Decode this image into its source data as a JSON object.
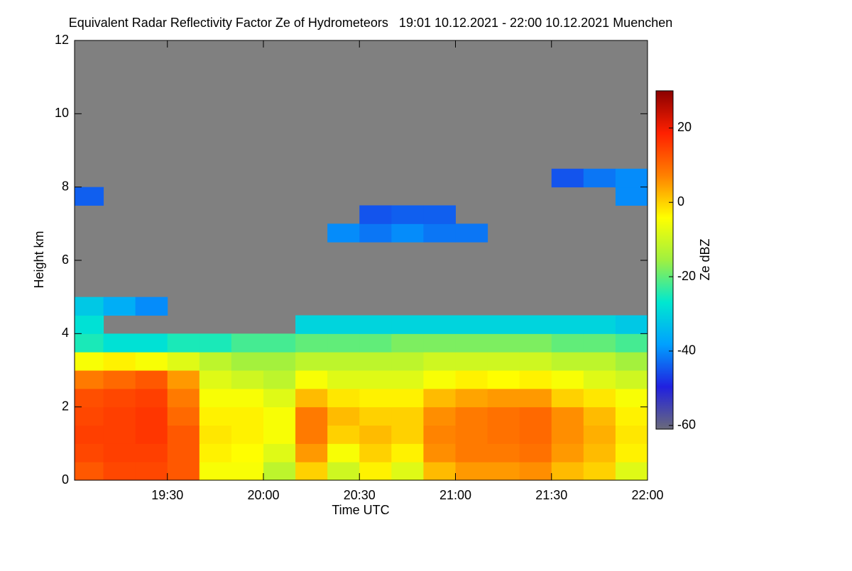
{
  "chart_data": {
    "type": "heatmap",
    "title": "Equivalent Radar Reflectivity Factor Ze of Hydrometeors   19:01 10.12.2021 - 22:00 10.12.2021 Muenchen",
    "x_label": "Time UTC",
    "y_label": "Height km",
    "background": "#808080",
    "xlim": [
      1141,
      1320
    ],
    "xticks": [
      {
        "value": 1170,
        "label": "19:30"
      },
      {
        "value": 1200,
        "label": "20:00"
      },
      {
        "value": 1230,
        "label": "20:30"
      },
      {
        "value": 1260,
        "label": "21:00"
      },
      {
        "value": 1290,
        "label": "21:30"
      },
      {
        "value": 1320,
        "label": "22:00"
      }
    ],
    "ylim": [
      0,
      12
    ],
    "yticks": [
      0,
      2,
      4,
      6,
      8,
      10,
      12
    ],
    "x_bins": [
      1141,
      1150,
      1160,
      1170,
      1180,
      1190,
      1200,
      1210,
      1220,
      1230,
      1240,
      1250,
      1260,
      1270,
      1280,
      1290,
      1300,
      1310,
      1320
    ],
    "y_bins": [
      0,
      0.5,
      1,
      1.5,
      2,
      2.5,
      3,
      3.5,
      4,
      4.5,
      5,
      5.5,
      6,
      6.5,
      7,
      7.5,
      8,
      8.5,
      9
    ],
    "values": [
      [
        12,
        14,
        14,
        12,
        -5,
        -5,
        -12,
        0,
        -10,
        -3,
        -8,
        2,
        5,
        5,
        6,
        2,
        0,
        -8
      ],
      [
        14,
        15,
        15,
        12,
        -3,
        -4,
        -8,
        5,
        -5,
        0,
        -3,
        6,
        8,
        8,
        9,
        5,
        2,
        -3
      ],
      [
        15,
        15,
        16,
        12,
        -2,
        -3,
        -5,
        8,
        0,
        2,
        0,
        7,
        8,
        9,
        10,
        6,
        3,
        -2
      ],
      [
        14,
        15,
        16,
        10,
        -3,
        -3,
        -5,
        8,
        2,
        0,
        0,
        6,
        8,
        9,
        10,
        6,
        2,
        -3
      ],
      [
        13,
        14,
        15,
        8,
        -5,
        -5,
        -8,
        2,
        -2,
        -3,
        -3,
        2,
        4,
        5,
        5,
        0,
        -2,
        -5
      ],
      [
        8,
        10,
        12,
        5,
        -8,
        -10,
        -12,
        -5,
        -8,
        -8,
        -8,
        -5,
        -3,
        -4,
        -3,
        -5,
        -8,
        -10
      ],
      [
        -5,
        -3,
        -5,
        -8,
        -12,
        -15,
        -15,
        -12,
        -12,
        -12,
        -12,
        -10,
        -10,
        -10,
        -10,
        -12,
        -12,
        -15
      ],
      [
        -25,
        -28,
        -28,
        -25,
        -25,
        -22,
        -22,
        -20,
        -20,
        -20,
        -18,
        -18,
        -18,
        -18,
        -18,
        -20,
        -20,
        -22
      ],
      [
        -28,
        null,
        null,
        null,
        null,
        null,
        null,
        -30,
        -30,
        -30,
        -30,
        -30,
        -30,
        -30,
        -30,
        -30,
        -30,
        -32
      ],
      [
        -32,
        -36,
        -40,
        null,
        null,
        null,
        null,
        null,
        null,
        null,
        null,
        null,
        null,
        null,
        null,
        null,
        null,
        null
      ],
      [
        null,
        null,
        null,
        null,
        null,
        null,
        null,
        null,
        null,
        null,
        null,
        null,
        null,
        null,
        null,
        null,
        null,
        null
      ],
      [
        null,
        null,
        null,
        null,
        null,
        null,
        null,
        null,
        null,
        null,
        null,
        null,
        null,
        null,
        null,
        null,
        null,
        null
      ],
      [
        null,
        null,
        null,
        null,
        null,
        null,
        null,
        null,
        null,
        null,
        null,
        null,
        null,
        null,
        null,
        null,
        null,
        null
      ],
      [
        null,
        null,
        null,
        null,
        null,
        null,
        null,
        null,
        -40,
        -42,
        -40,
        -42,
        -42,
        null,
        null,
        null,
        null,
        null
      ],
      [
        null,
        null,
        null,
        null,
        null,
        null,
        null,
        null,
        null,
        -45,
        -44,
        -44,
        null,
        null,
        null,
        null,
        null,
        null
      ],
      [
        -44,
        null,
        null,
        null,
        null,
        null,
        null,
        null,
        null,
        null,
        null,
        null,
        null,
        null,
        null,
        null,
        null,
        -40
      ],
      [
        null,
        null,
        null,
        null,
        null,
        null,
        null,
        null,
        null,
        null,
        null,
        null,
        null,
        null,
        null,
        -45,
        -42,
        -40
      ],
      [
        null,
        null,
        null,
        null,
        null,
        null,
        null,
        null,
        null,
        null,
        null,
        null,
        null,
        null,
        null,
        null,
        null,
        null
      ]
    ],
    "colorbar": {
      "label": "Ze dBZ",
      "lim": [
        -61,
        30
      ],
      "ticks": [
        -60,
        -40,
        -20,
        0,
        20
      ],
      "colors": [
        "#6a6a7a",
        "#2020e0",
        "#00a0ff",
        "#00e8d0",
        "#a0f040",
        "#ffff00",
        "#ff8000",
        "#ff2000",
        "#8b0000"
      ]
    }
  }
}
